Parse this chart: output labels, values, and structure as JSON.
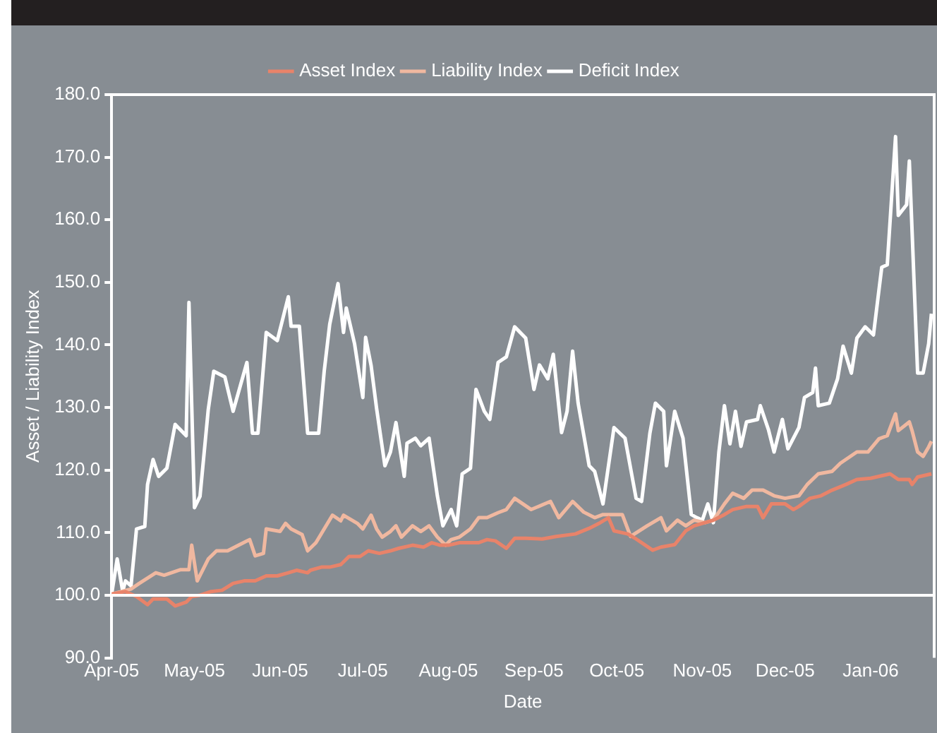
{
  "chart_data": {
    "type": "line",
    "xlabel": "Date",
    "ylabel": "Asset / Liability Index",
    "legend": "top",
    "marker": "none",
    "grid": false,
    "xlim": [
      "2005-04-01",
      "2006-01-24"
    ],
    "xticks": [
      {
        "value": "2005-04-01",
        "label": "Apr-05"
      },
      {
        "value": "2005-05-01",
        "label": "May-05"
      },
      {
        "value": "2005-06-01",
        "label": "Jun-05"
      },
      {
        "value": "2005-07-01",
        "label": "Jul-05"
      },
      {
        "value": "2005-08-01",
        "label": "Aug-05"
      },
      {
        "value": "2005-09-01",
        "label": "Sep-05"
      },
      {
        "value": "2005-10-01",
        "label": "Oct-05"
      },
      {
        "value": "2005-11-01",
        "label": "Nov-05"
      },
      {
        "value": "2005-12-01",
        "label": "Dec-05"
      },
      {
        "value": "2006-01-01",
        "label": "Jan-06"
      }
    ],
    "ylim": [
      90,
      180
    ],
    "yticks": [
      {
        "value": 90,
        "label": "90.0"
      },
      {
        "value": 100,
        "label": "100.0"
      },
      {
        "value": 110,
        "label": "110.0"
      },
      {
        "value": 120,
        "label": "120.0"
      },
      {
        "value": 130,
        "label": "130.0"
      },
      {
        "value": 140,
        "label": "140.0"
      },
      {
        "value": 150,
        "label": "150.0"
      },
      {
        "value": 160,
        "label": "160.0"
      },
      {
        "value": 170,
        "label": "170.0"
      },
      {
        "value": 180,
        "label": "180.0"
      }
    ],
    "ref_lines": [
      {
        "axis": "y",
        "value": 100,
        "color": "#ffffff"
      }
    ],
    "series": [
      {
        "name": "Asset Index",
        "color": "#e8836a",
        "x": [
          "2005-04-01",
          "2005-04-06",
          "2005-04-10",
          "2005-04-14",
          "2005-04-16",
          "2005-04-21",
          "2005-04-24",
          "2005-04-28",
          "2005-04-30",
          "2005-05-03",
          "2005-05-07",
          "2005-05-11",
          "2005-05-15",
          "2005-05-19",
          "2005-05-23",
          "2005-05-27",
          "2005-05-31",
          "2005-06-04",
          "2005-06-07",
          "2005-06-11",
          "2005-06-12",
          "2005-06-16",
          "2005-06-19",
          "2005-06-23",
          "2005-06-26",
          "2005-06-30",
          "2005-07-03",
          "2005-07-07",
          "2005-07-11",
          "2005-07-14",
          "2005-07-19",
          "2005-07-23",
          "2005-07-26",
          "2005-07-29",
          "2005-08-01",
          "2005-08-05",
          "2005-08-08",
          "2005-08-12",
          "2005-08-15",
          "2005-08-18",
          "2005-08-22",
          "2005-08-25",
          "2005-08-29",
          "2005-09-04",
          "2005-09-09",
          "2005-09-16",
          "2005-09-21",
          "2005-09-25",
          "2005-09-28",
          "2005-09-30",
          "2005-10-05",
          "2005-10-08",
          "2005-10-14",
          "2005-10-17",
          "2005-10-22",
          "2005-10-26",
          "2005-10-29",
          "2005-11-02",
          "2005-11-05",
          "2005-11-09",
          "2005-11-12",
          "2005-11-17",
          "2005-11-21",
          "2005-11-23",
          "2005-11-26",
          "2005-12-01",
          "2005-12-04",
          "2005-12-06",
          "2005-12-10",
          "2005-12-14",
          "2005-12-18",
          "2005-12-23",
          "2005-12-27",
          "2006-01-01",
          "2006-01-08",
          "2006-01-11",
          "2006-01-15",
          "2006-01-16",
          "2006-01-18",
          "2006-01-23"
        ],
        "values": [
          100.2,
          100.6,
          99.8,
          98.5,
          99.4,
          99.4,
          98.3,
          98.9,
          99.8,
          100,
          100.6,
          100.8,
          101.9,
          102.3,
          102.3,
          103.1,
          103.1,
          103.6,
          104,
          103.6,
          104,
          104.5,
          104.5,
          104.9,
          106.2,
          106.2,
          107.1,
          106.7,
          107.1,
          107.5,
          108,
          107.7,
          108.4,
          108,
          108,
          108.4,
          108.4,
          108.4,
          108.9,
          108.7,
          107.5,
          109.1,
          109.1,
          109,
          109.4,
          109.8,
          110.7,
          111.6,
          112.4,
          110.3,
          109.8,
          109,
          107.2,
          107.7,
          108.1,
          110.3,
          111.1,
          111.6,
          112,
          112.9,
          113.7,
          114.2,
          114.2,
          112.4,
          114.6,
          114.6,
          113.7,
          114.2,
          115.5,
          115.9,
          116.8,
          117.7,
          118.5,
          118.7,
          119.4,
          118.5,
          118.5,
          117.7,
          118.9,
          119.4
        ]
      },
      {
        "name": "Liability Index",
        "color": "#f0b8a0",
        "x": [
          "2005-04-01",
          "2005-04-08",
          "2005-04-11",
          "2005-04-17",
          "2005-04-20",
          "2005-04-26",
          "2005-04-29",
          "2005-04-30",
          "2005-05-02",
          "2005-05-06",
          "2005-05-09",
          "2005-05-13",
          "2005-05-17",
          "2005-05-21",
          "2005-05-23",
          "2005-05-26",
          "2005-05-27",
          "2005-06-01",
          "2005-06-03",
          "2005-06-05",
          "2005-06-09",
          "2005-06-11",
          "2005-06-14",
          "2005-06-17",
          "2005-06-20",
          "2005-06-23",
          "2005-06-24",
          "2005-06-29",
          "2005-07-01",
          "2005-07-04",
          "2005-07-06",
          "2005-07-08",
          "2005-07-11",
          "2005-07-13",
          "2005-07-15",
          "2005-07-19",
          "2005-07-22",
          "2005-07-25",
          "2005-07-28",
          "2005-07-31",
          "2005-08-02",
          "2005-08-05",
          "2005-08-09",
          "2005-08-12",
          "2005-08-15",
          "2005-08-19",
          "2005-08-22",
          "2005-08-25",
          "2005-08-31",
          "2005-09-07",
          "2005-09-10",
          "2005-09-15",
          "2005-09-19",
          "2005-09-23",
          "2005-09-26",
          "2005-10-03",
          "2005-10-06",
          "2005-10-12",
          "2005-10-17",
          "2005-10-19",
          "2005-10-23",
          "2005-10-26",
          "2005-10-29",
          "2005-11-02",
          "2005-11-05",
          "2005-11-09",
          "2005-11-12",
          "2005-11-16",
          "2005-11-19",
          "2005-11-23",
          "2005-11-27",
          "2005-12-01",
          "2005-12-06",
          "2005-12-09",
          "2005-12-13",
          "2005-12-18",
          "2005-12-21",
          "2005-12-27",
          "2005-12-31",
          "2006-01-04",
          "2006-01-07",
          "2006-01-10",
          "2006-01-11",
          "2006-01-15",
          "2006-01-16",
          "2006-01-18",
          "2006-01-20",
          "2006-01-22",
          "2006-01-23"
        ],
        "values": [
          100.2,
          101,
          101.9,
          103.6,
          103.2,
          104.1,
          104.1,
          108,
          102.3,
          105.8,
          107.1,
          107.1,
          108,
          108.9,
          106.3,
          106.7,
          110.6,
          110.2,
          111.5,
          110.6,
          109.7,
          107.1,
          108.4,
          110.6,
          112.8,
          111.9,
          112.8,
          111.5,
          110.6,
          112.8,
          110.6,
          109.3,
          110.2,
          111.1,
          109.3,
          111.1,
          110.2,
          111.1,
          109.3,
          108,
          108.9,
          109.3,
          110.6,
          112.4,
          112.4,
          113.2,
          113.7,
          115.5,
          113.7,
          115,
          112.4,
          115,
          113.3,
          112.4,
          112.9,
          112.9,
          109.4,
          111.1,
          112.4,
          110.3,
          112,
          111.1,
          112,
          111.6,
          112,
          114.6,
          116.3,
          115.5,
          116.8,
          116.8,
          115.9,
          115.5,
          115.9,
          117.7,
          119.4,
          119.8,
          121.1,
          122.9,
          122.9,
          125,
          125.5,
          129,
          126.3,
          127.7,
          126.3,
          122.9,
          122.2,
          123.7,
          124.6
        ]
      },
      {
        "name": "Deficit Index",
        "color": "#ffffff",
        "x": [
          "2005-04-01",
          "2005-04-03",
          "2005-04-05",
          "2005-04-06",
          "2005-04-08",
          "2005-04-10",
          "2005-04-13",
          "2005-04-14",
          "2005-04-16",
          "2005-04-18",
          "2005-04-21",
          "2005-04-24",
          "2005-04-28",
          "2005-04-29",
          "2005-05-01",
          "2005-05-03",
          "2005-05-06",
          "2005-05-08",
          "2005-05-12",
          "2005-05-15",
          "2005-05-20",
          "2005-05-22",
          "2005-05-24",
          "2005-05-27",
          "2005-05-31",
          "2005-06-04",
          "2005-06-05",
          "2005-06-08",
          "2005-06-11",
          "2005-06-15",
          "2005-06-17",
          "2005-06-19",
          "2005-06-22",
          "2005-06-24",
          "2005-06-25",
          "2005-06-28",
          "2005-07-01",
          "2005-07-02",
          "2005-07-04",
          "2005-07-06",
          "2005-07-09",
          "2005-07-11",
          "2005-07-13",
          "2005-07-16",
          "2005-07-17",
          "2005-07-20",
          "2005-07-22",
          "2005-07-25",
          "2005-07-28",
          "2005-07-30",
          "2005-08-02",
          "2005-08-04",
          "2005-08-06",
          "2005-08-09",
          "2005-08-11",
          "2005-08-14",
          "2005-08-16",
          "2005-08-19",
          "2005-08-22",
          "2005-08-25",
          "2005-08-29",
          "2005-09-01",
          "2005-09-03",
          "2005-09-06",
          "2005-09-08",
          "2005-09-11",
          "2005-09-13",
          "2005-09-15",
          "2005-09-17",
          "2005-09-21",
          "2005-09-23",
          "2005-09-26",
          "2005-09-30",
          "2005-10-04",
          "2005-10-08",
          "2005-10-10",
          "2005-10-13",
          "2005-10-15",
          "2005-10-18",
          "2005-10-19",
          "2005-10-22",
          "2005-10-25",
          "2005-10-28",
          "2005-10-30",
          "2005-11-01",
          "2005-11-03",
          "2005-11-05",
          "2005-11-07",
          "2005-11-09",
          "2005-11-11",
          "2005-11-13",
          "2005-11-15",
          "2005-11-17",
          "2005-11-21",
          "2005-11-22",
          "2005-11-25",
          "2005-11-27",
          "2005-11-30",
          "2005-12-02",
          "2005-12-06",
          "2005-12-08",
          "2005-12-11",
          "2005-12-12",
          "2005-12-13",
          "2005-12-17",
          "2005-12-20",
          "2005-12-22",
          "2005-12-25",
          "2005-12-27",
          "2005-12-30",
          "2006-01-02",
          "2006-01-05",
          "2006-01-07",
          "2006-01-10",
          "2006-01-11",
          "2006-01-14",
          "2006-01-15",
          "2006-01-18",
          "2006-01-20",
          "2006-01-22",
          "2006-01-23"
        ],
        "values": [
          100.2,
          105.8,
          100.6,
          102.3,
          101.5,
          110.6,
          111,
          117.7,
          121.7,
          119,
          120.3,
          127.3,
          125.5,
          146.8,
          114,
          115.8,
          129.7,
          135.8,
          134.9,
          129.4,
          137.2,
          125.9,
          125.9,
          142,
          140.7,
          147.7,
          143,
          143,
          125.9,
          125.9,
          135.8,
          143.3,
          149.8,
          142,
          145.9,
          140.2,
          131.6,
          141.2,
          136.7,
          129.8,
          120.7,
          122.9,
          127.6,
          119,
          124.3,
          125.1,
          123.9,
          125.1,
          115.9,
          111.1,
          113.7,
          111.1,
          119.4,
          120.3,
          132.9,
          129.4,
          128.1,
          137.2,
          138.1,
          142.9,
          141.1,
          132.9,
          136.8,
          134.6,
          138.5,
          126,
          129.4,
          139,
          130.7,
          120.7,
          119.8,
          114.6,
          126.8,
          125.1,
          115.5,
          115,
          125.9,
          130.7,
          129.4,
          120.7,
          129.4,
          125.1,
          112.9,
          112.4,
          112,
          114.6,
          111.6,
          122.9,
          130.3,
          124.2,
          129.4,
          123.8,
          127.7,
          128.1,
          130.3,
          126.4,
          122.9,
          128.1,
          123.4,
          126.8,
          131.6,
          132.4,
          136.3,
          130.3,
          130.7,
          134.6,
          139.8,
          135.5,
          141.1,
          142.9,
          141.6,
          152.4,
          152.8,
          173.3,
          160.7,
          162.4,
          169.4,
          135.5,
          135.5,
          140.2,
          145
        ]
      }
    ]
  }
}
